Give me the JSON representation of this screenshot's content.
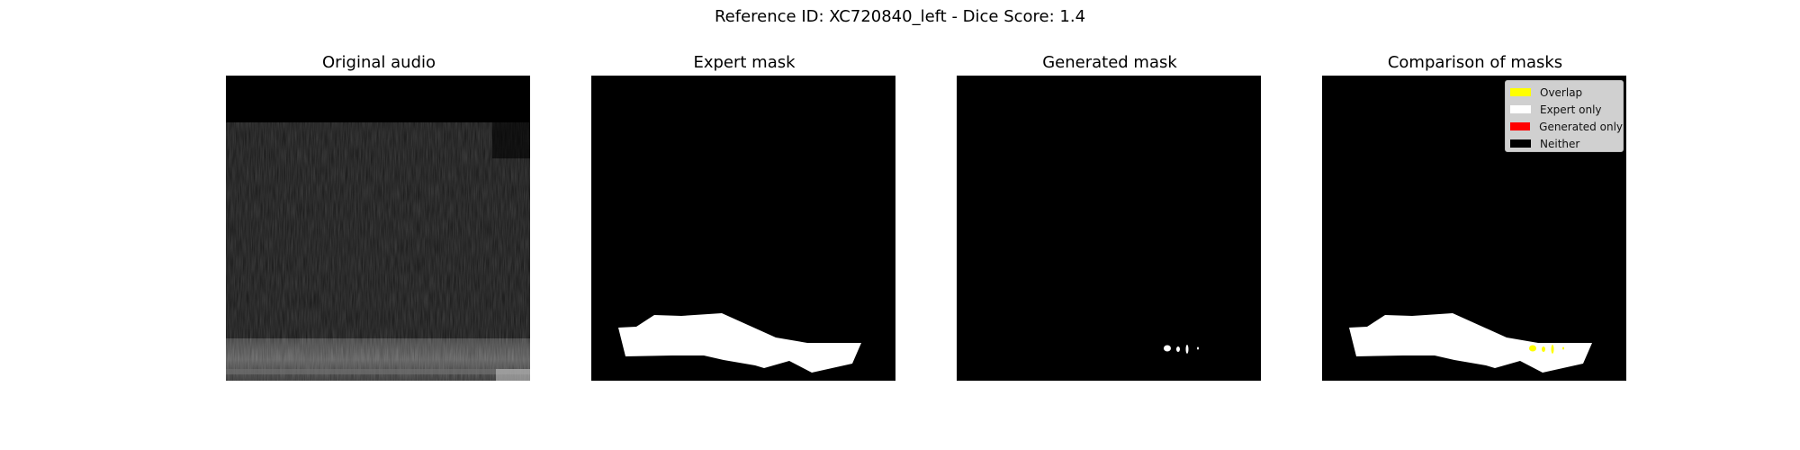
{
  "figure": {
    "suptitle": "Reference ID: XC720840_left - Dice Score: 1.4"
  },
  "panels": [
    {
      "title": "Original audio"
    },
    {
      "title": "Expert mask"
    },
    {
      "title": "Generated mask"
    },
    {
      "title": "Comparison of masks"
    }
  ],
  "legend": {
    "items": [
      {
        "label": "Overlap",
        "color": "#ffff00"
      },
      {
        "label": "Expert only",
        "color": "#ffffff"
      },
      {
        "label": "Generated only",
        "color": "#ff0000"
      },
      {
        "label": "Neither",
        "color": "#000000"
      }
    ]
  },
  "colors": {
    "background": "#000000",
    "mask": "#ffffff",
    "overlap": "#ffff00"
  }
}
